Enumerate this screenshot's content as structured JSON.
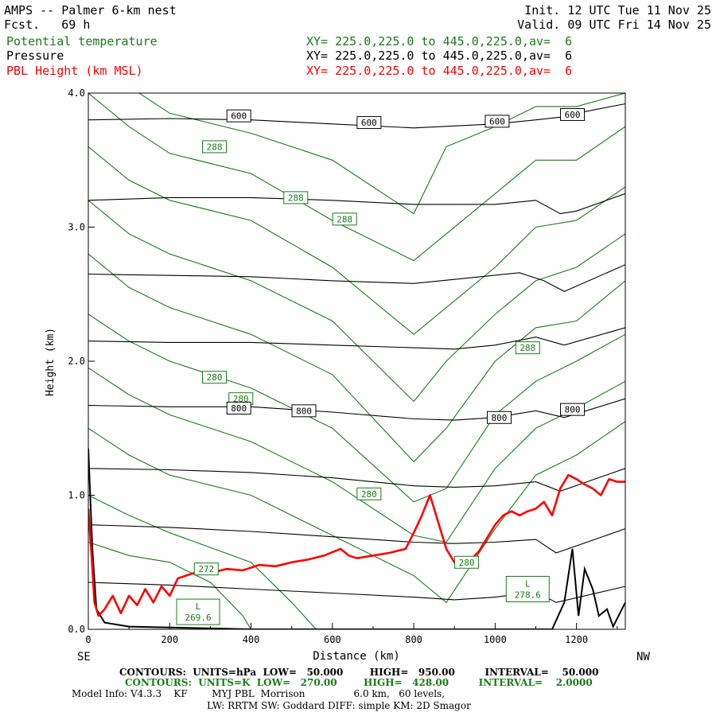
{
  "header": {
    "title": "AMPS -- Palmer 6-km nest",
    "fcst": "Fcst.   69 h",
    "init": "Init. 12 UTC Tue 11 Nov 25",
    "valid": "Valid. 09 UTC Fri 14 Nov 25",
    "fields": [
      {
        "name": "Potential temperature",
        "xy": "XY= 225.0,225.0 to 445.0,225.0,av=  6",
        "color": "#1a7a1a"
      },
      {
        "name": "Pressure",
        "xy": "XY= 225.0,225.0 to 445.0,225.0,av=  6",
        "color": "#000000"
      },
      {
        "name": "PBL Height (km MSL)",
        "xy": "XY= 225.0,225.0 to 445.0,225.0,av=  6",
        "color": "#ff0000"
      }
    ]
  },
  "axes": {
    "ylabel": "Height (km)",
    "xlabel": "Distance (km)",
    "left_end": "SE",
    "right_end": "NW",
    "yticks": [
      "0.0",
      "1.0",
      "2.0",
      "3.0",
      "4.0"
    ],
    "xticks": [
      "0",
      "200",
      "400",
      "600",
      "800",
      "1000",
      "1200"
    ]
  },
  "footer": {
    "line1": "CONTOURS:  UNITS=hPa  LOW=   50.000        HIGH=   950.00         INTERVAL=    50.000",
    "line2": "CONTOURS:  UNITS=K  LOW=   270.00        HIGH=   428.00         INTERVAL=    2.0000",
    "line3": "Model Info: V4.3.3    KF        MYJ PBL  Morrison                6.0 km,   60 levels,",
    "line4": "LW: RRTM SW: Goddard DIFF: simple KM: 2D Smagor"
  },
  "chart_data": {
    "type": "line",
    "xlim": [
      0,
      1320
    ],
    "ylim": [
      0,
      4.0
    ],
    "pressure_contours": {
      "color": "#000000",
      "labels": [
        {
          "text": "600",
          "x": 370,
          "y": 3.83
        },
        {
          "text": "600",
          "x": 690,
          "y": 3.78
        },
        {
          "text": "600",
          "x": 1005,
          "y": 3.79
        },
        {
          "text": "600",
          "x": 1190,
          "y": 3.84
        },
        {
          "text": "800",
          "x": 370,
          "y": 1.65
        },
        {
          "text": "800",
          "x": 530,
          "y": 1.63
        },
        {
          "text": "800",
          "x": 1010,
          "y": 1.58
        },
        {
          "text": "800",
          "x": 1190,
          "y": 1.64
        }
      ],
      "lines": [
        [
          [
            0,
            3.8
          ],
          [
            200,
            3.81
          ],
          [
            400,
            3.8
          ],
          [
            600,
            3.77
          ],
          [
            800,
            3.74
          ],
          [
            1000,
            3.77
          ],
          [
            1100,
            3.8
          ],
          [
            1160,
            3.82
          ],
          [
            1200,
            3.85
          ],
          [
            1320,
            3.92
          ]
        ],
        [
          [
            0,
            3.2
          ],
          [
            200,
            3.22
          ],
          [
            400,
            3.22
          ],
          [
            600,
            3.2
          ],
          [
            800,
            3.17
          ],
          [
            1000,
            3.17
          ],
          [
            1100,
            3.2
          ],
          [
            1160,
            3.1
          ],
          [
            1200,
            3.12
          ],
          [
            1320,
            3.25
          ]
        ],
        [
          [
            0,
            2.65
          ],
          [
            200,
            2.64
          ],
          [
            400,
            2.63
          ],
          [
            600,
            2.6
          ],
          [
            800,
            2.58
          ],
          [
            900,
            2.61
          ],
          [
            1060,
            2.66
          ],
          [
            1120,
            2.6
          ],
          [
            1170,
            2.52
          ],
          [
            1320,
            2.72
          ]
        ],
        [
          [
            0,
            2.15
          ],
          [
            200,
            2.14
          ],
          [
            400,
            2.14
          ],
          [
            600,
            2.12
          ],
          [
            800,
            2.1
          ],
          [
            900,
            2.09
          ],
          [
            1000,
            2.12
          ],
          [
            1100,
            2.18
          ],
          [
            1170,
            2.12
          ],
          [
            1320,
            2.25
          ]
        ],
        [
          [
            0,
            1.67
          ],
          [
            200,
            1.66
          ],
          [
            400,
            1.66
          ],
          [
            600,
            1.62
          ],
          [
            800,
            1.57
          ],
          [
            900,
            1.56
          ],
          [
            1000,
            1.58
          ],
          [
            1100,
            1.63
          ],
          [
            1170,
            1.58
          ],
          [
            1320,
            1.72
          ]
        ],
        [
          [
            0,
            1.2
          ],
          [
            200,
            1.19
          ],
          [
            400,
            1.17
          ],
          [
            600,
            1.13
          ],
          [
            800,
            1.07
          ],
          [
            900,
            1.06
          ],
          [
            1000,
            1.07
          ],
          [
            1100,
            1.1
          ],
          [
            1160,
            1.03
          ],
          [
            1320,
            1.2
          ]
        ],
        [
          [
            0,
            0.78
          ],
          [
            200,
            0.76
          ],
          [
            400,
            0.73
          ],
          [
            600,
            0.69
          ],
          [
            800,
            0.65
          ],
          [
            900,
            0.64
          ],
          [
            1000,
            0.65
          ],
          [
            1100,
            0.67
          ],
          [
            1150,
            0.57
          ],
          [
            1320,
            0.75
          ]
        ],
        [
          [
            0,
            0.35
          ],
          [
            200,
            0.33
          ],
          [
            400,
            0.3
          ],
          [
            600,
            0.27
          ],
          [
            800,
            0.24
          ],
          [
            900,
            0.22
          ],
          [
            1000,
            0.24
          ],
          [
            1100,
            0.28
          ],
          [
            1150,
            0.2
          ],
          [
            1320,
            0.32
          ]
        ]
      ],
      "terrain": [
        [
          0,
          1.35
        ],
        [
          10,
          0.6
        ],
        [
          20,
          0.15
        ],
        [
          40,
          0.05
        ],
        [
          100,
          0.02
        ],
        [
          400,
          0.0
        ],
        [
          1140,
          0.0
        ],
        [
          1170,
          0.2
        ],
        [
          1190,
          0.6
        ],
        [
          1205,
          0.1
        ],
        [
          1220,
          0.45
        ],
        [
          1240,
          0.3
        ],
        [
          1255,
          0.1
        ],
        [
          1275,
          0.15
        ],
        [
          1290,
          0.02
        ],
        [
          1320,
          0.2
        ]
      ]
    },
    "theta_contours": {
      "color": "#1a7a1a",
      "labels": [
        {
          "text": "288",
          "x": 310,
          "y": 3.6
        },
        {
          "text": "288",
          "x": 510,
          "y": 3.22
        },
        {
          "text": "288",
          "x": 630,
          "y": 3.06
        },
        {
          "text": "288",
          "x": 1080,
          "y": 2.1
        },
        {
          "text": "280",
          "x": 310,
          "y": 1.88
        },
        {
          "text": "280",
          "x": 375,
          "y": 1.72
        },
        {
          "text": "280",
          "x": 690,
          "y": 1.01
        },
        {
          "text": "280",
          "x": 930,
          "y": 0.5
        },
        {
          "text": "272",
          "x": 290,
          "y": 0.45
        }
      ],
      "lines": [
        [
          [
            0,
            4.3
          ],
          [
            100,
            4.05
          ],
          [
            200,
            3.85
          ],
          [
            400,
            3.7
          ],
          [
            600,
            3.5
          ],
          [
            800,
            3.1
          ],
          [
            880,
            3.6
          ],
          [
            1000,
            3.75
          ],
          [
            1100,
            3.9
          ],
          [
            1200,
            3.9
          ],
          [
            1320,
            4.0
          ]
        ],
        [
          [
            0,
            4.0
          ],
          [
            100,
            3.75
          ],
          [
            200,
            3.55
          ],
          [
            400,
            3.4
          ],
          [
            600,
            3.05
          ],
          [
            800,
            2.75
          ],
          [
            880,
            2.95
          ],
          [
            1000,
            3.25
          ],
          [
            1100,
            3.5
          ],
          [
            1200,
            3.5
          ],
          [
            1320,
            3.75
          ]
        ],
        [
          [
            0,
            3.6
          ],
          [
            100,
            3.35
          ],
          [
            200,
            3.2
          ],
          [
            400,
            3.05
          ],
          [
            600,
            2.7
          ],
          [
            800,
            2.2
          ],
          [
            880,
            2.4
          ],
          [
            1000,
            2.7
          ],
          [
            1100,
            3.0
          ],
          [
            1200,
            3.05
          ],
          [
            1320,
            3.3
          ]
        ],
        [
          [
            0,
            3.2
          ],
          [
            100,
            2.95
          ],
          [
            200,
            2.8
          ],
          [
            400,
            2.6
          ],
          [
            600,
            2.3
          ],
          [
            800,
            1.7
          ],
          [
            880,
            2.0
          ],
          [
            1000,
            2.35
          ],
          [
            1100,
            2.6
          ],
          [
            1200,
            2.7
          ],
          [
            1320,
            2.95
          ]
        ],
        [
          [
            0,
            2.8
          ],
          [
            100,
            2.55
          ],
          [
            200,
            2.4
          ],
          [
            400,
            2.2
          ],
          [
            600,
            1.9
          ],
          [
            800,
            1.25
          ],
          [
            880,
            1.5
          ],
          [
            1000,
            2.0
          ],
          [
            1100,
            2.25
          ],
          [
            1200,
            2.3
          ],
          [
            1320,
            2.6
          ]
        ],
        [
          [
            0,
            2.35
          ],
          [
            100,
            2.15
          ],
          [
            200,
            2.0
          ],
          [
            400,
            1.8
          ],
          [
            600,
            1.5
          ],
          [
            800,
            0.95
          ],
          [
            880,
            1.05
          ],
          [
            1000,
            1.6
          ],
          [
            1100,
            1.85
          ],
          [
            1200,
            2.0
          ],
          [
            1320,
            2.2
          ]
        ],
        [
          [
            0,
            1.95
          ],
          [
            100,
            1.75
          ],
          [
            200,
            1.6
          ],
          [
            400,
            1.4
          ],
          [
            600,
            1.1
          ],
          [
            800,
            0.7
          ],
          [
            880,
            0.65
          ],
          [
            1000,
            1.2
          ],
          [
            1100,
            1.5
          ],
          [
            1200,
            1.65
          ],
          [
            1320,
            1.85
          ]
        ],
        [
          [
            0,
            1.5
          ],
          [
            100,
            1.3
          ],
          [
            200,
            1.15
          ],
          [
            400,
            1.0
          ],
          [
            600,
            0.7
          ],
          [
            800,
            0.4
          ],
          [
            880,
            0.2
          ],
          [
            1000,
            0.75
          ],
          [
            1100,
            1.15
          ],
          [
            1200,
            1.3
          ],
          [
            1320,
            1.55
          ]
        ],
        [
          [
            0,
            1.0
          ],
          [
            100,
            0.85
          ],
          [
            200,
            0.72
          ],
          [
            400,
            0.5
          ],
          [
            500,
            0.2
          ],
          [
            560,
            0.0
          ]
        ],
        [
          [
            0,
            0.65
          ],
          [
            100,
            0.55
          ],
          [
            200,
            0.5
          ],
          [
            300,
            0.35
          ],
          [
            380,
            0.1
          ],
          [
            400,
            0.0
          ]
        ]
      ],
      "lows": [
        {
          "text": "L",
          "value": "269.6",
          "x": 270,
          "y": 0.13
        },
        {
          "text": "L",
          "value": "278.6",
          "x": 1080,
          "y": 0.3
        }
      ]
    },
    "pbl_height": {
      "color": "#ff0000",
      "x": [
        0,
        8,
        15,
        25,
        40,
        60,
        80,
        100,
        120,
        140,
        160,
        180,
        200,
        220,
        240,
        260,
        300,
        340,
        380,
        420,
        460,
        500,
        540,
        580,
        620,
        640,
        660,
        700,
        740,
        780,
        800,
        820,
        840,
        860,
        880,
        900,
        920,
        940,
        960,
        980,
        1000,
        1020,
        1040,
        1060,
        1080,
        1100,
        1120,
        1140,
        1160,
        1180,
        1200,
        1220,
        1240,
        1260,
        1280,
        1300,
        1320
      ],
      "y": [
        0.9,
        0.55,
        0.2,
        0.1,
        0.15,
        0.25,
        0.12,
        0.25,
        0.18,
        0.3,
        0.2,
        0.32,
        0.25,
        0.38,
        0.4,
        0.42,
        0.42,
        0.45,
        0.44,
        0.48,
        0.47,
        0.5,
        0.52,
        0.55,
        0.6,
        0.55,
        0.53,
        0.55,
        0.57,
        0.6,
        0.72,
        0.85,
        1.0,
        0.8,
        0.6,
        0.5,
        0.48,
        0.52,
        0.58,
        0.68,
        0.78,
        0.85,
        0.88,
        0.85,
        0.88,
        0.9,
        0.95,
        0.85,
        1.05,
        1.15,
        1.12,
        1.08,
        1.05,
        1.0,
        1.12,
        1.1,
        1.1
      ]
    }
  }
}
